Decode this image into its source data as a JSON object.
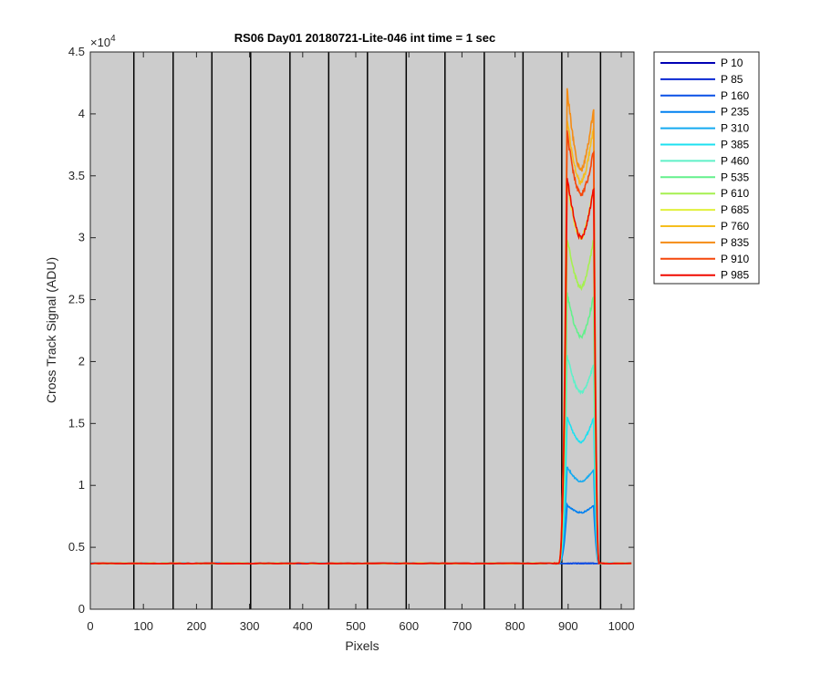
{
  "chart_data": {
    "type": "line",
    "title": "RS06 Day01 20180721-Lite-046 int time = 1 sec",
    "xlabel": "Pixels",
    "ylabel": "Cross Track Signal (ADU)",
    "xlim": [
      0,
      1024
    ],
    "ylim": [
      0,
      45000
    ],
    "y_exponent_label": "×10",
    "y_exponent_power": "4",
    "x_ticks": [
      0,
      100,
      200,
      300,
      400,
      500,
      600,
      700,
      800,
      900,
      1000
    ],
    "x_tick_labels": [
      "0",
      "100",
      "200",
      "300",
      "400",
      "500",
      "600",
      "700",
      "800",
      "900",
      "1000"
    ],
    "y_ticks": [
      0,
      5000,
      10000,
      15000,
      20000,
      25000,
      30000,
      35000,
      40000,
      45000
    ],
    "y_tick_labels": [
      "0",
      "0.5",
      "1",
      "1.5",
      "2",
      "2.5",
      "3",
      "3.5",
      "4",
      "4.5"
    ],
    "vertical_lines_x": [
      82,
      156,
      229,
      302,
      376,
      449,
      522,
      595,
      668,
      742,
      815,
      888,
      961
    ],
    "background_color": "#cccccc",
    "grid": false,
    "legend_position": "outside-right",
    "baseline": 3700,
    "peak_region": {
      "rise_start": 882,
      "rise_end": 898,
      "fall_start": 948,
      "fall_end": 958,
      "dip_center": 925
    },
    "series": [
      {
        "name": "P 10",
        "color": "#0000b4",
        "plateau_left": 3700,
        "dip": 3700,
        "plateau_right": 3700
      },
      {
        "name": "P 85",
        "color": "#0a28d2",
        "plateau_left": 3700,
        "dip": 3700,
        "plateau_right": 3700
      },
      {
        "name": "P 160",
        "color": "#0a50e6",
        "plateau_left": 3700,
        "dip": 3700,
        "plateau_right": 3700
      },
      {
        "name": "P 235",
        "color": "#0080f0",
        "plateau_left": 8400,
        "dip": 7800,
        "plateau_right": 8400
      },
      {
        "name": "P 310",
        "color": "#14aaf0",
        "plateau_left": 11500,
        "dip": 10300,
        "plateau_right": 11300
      },
      {
        "name": "P 385",
        "color": "#1ee0f0",
        "plateau_left": 15500,
        "dip": 13500,
        "plateau_right": 15500
      },
      {
        "name": "P 460",
        "color": "#5ff0c8",
        "plateau_left": 20500,
        "dip": 17500,
        "plateau_right": 19800
      },
      {
        "name": "P 535",
        "color": "#64f08c",
        "plateau_left": 25500,
        "dip": 22000,
        "plateau_right": 25300
      },
      {
        "name": "P 610",
        "color": "#a5f050",
        "plateau_left": 30000,
        "dip": 26000,
        "plateau_right": 29800
      },
      {
        "name": "P 685",
        "color": "#e1f03c",
        "plateau_left": 34500,
        "dip": 30000,
        "plateau_right": 34200
      },
      {
        "name": "P 760",
        "color": "#f5be1e",
        "plateau_left": 39500,
        "dip": 34500,
        "plateau_right": 39000
      },
      {
        "name": "P 835",
        "color": "#f58c14",
        "plateau_left": 42000,
        "dip": 35500,
        "plateau_right": 40500
      },
      {
        "name": "P 910",
        "color": "#f5460a",
        "plateau_left": 38500,
        "dip": 33500,
        "plateau_right": 37000
      },
      {
        "name": "P 985",
        "color": "#f00a00",
        "plateau_left": 35000,
        "dip": 30000,
        "plateau_right": 34000
      }
    ]
  }
}
